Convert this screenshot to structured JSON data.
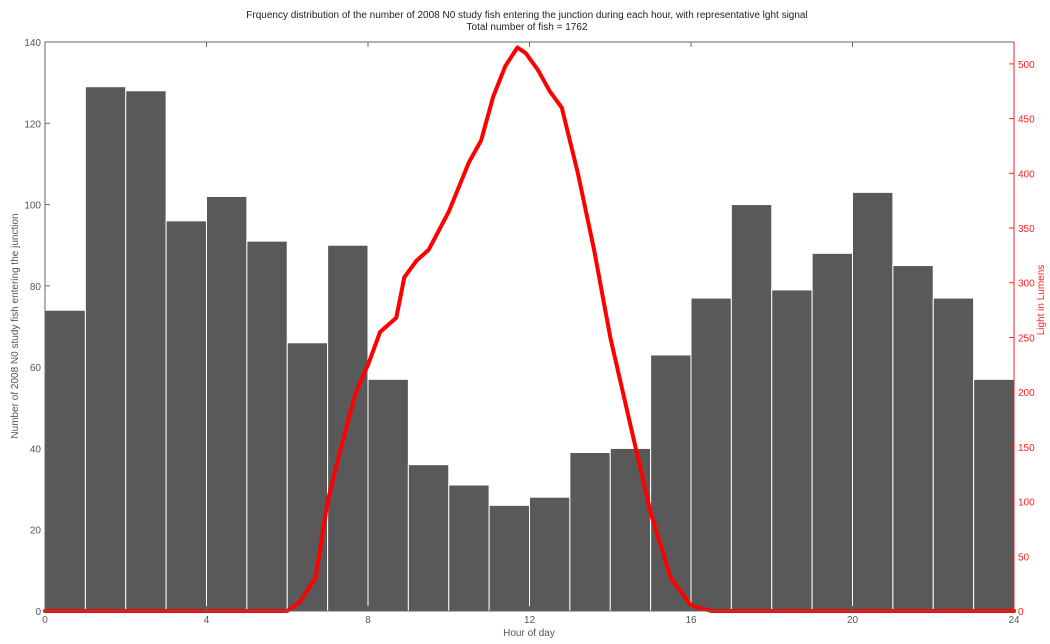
{
  "chart_data": {
    "type": "bar",
    "title": "Frquency distribution of the number of 2008 N0 study fish entering the junction during each hour, with representative lght signal",
    "subtitle": "Total number of fish = 1762",
    "xlabel": "Hour of day",
    "ylabel": "Number of 2008 N0 study fish entering the junction",
    "y2label": "Light in Lumens",
    "xlim": [
      0,
      24
    ],
    "ylim": [
      0,
      140
    ],
    "y2lim": [
      0,
      520
    ],
    "xticks": [
      0,
      4,
      8,
      12,
      16,
      20,
      24
    ],
    "yticks": [
      0,
      20,
      40,
      60,
      80,
      100,
      120,
      140
    ],
    "y2ticks": [
      0,
      50,
      100,
      150,
      200,
      250,
      300,
      350,
      400,
      450,
      500
    ],
    "grid": false,
    "colors": {
      "bars": "#595959",
      "bar_edge": "#ffffff",
      "light": "#ff0000",
      "right_axis": "#ff2020"
    },
    "bars": {
      "x": [
        0,
        1,
        2,
        3,
        4,
        5,
        6,
        7,
        8,
        9,
        10,
        11,
        12,
        13,
        14,
        15,
        16,
        17,
        18,
        19,
        20,
        21,
        22,
        23
      ],
      "values": [
        74,
        129,
        128,
        96,
        102,
        91,
        66,
        90,
        57,
        36,
        31,
        26,
        28,
        39,
        40,
        63,
        77,
        100,
        79,
        88,
        103,
        85,
        77,
        57
      ]
    },
    "light_series": {
      "x": [
        0,
        6,
        6.3,
        6.7,
        7,
        7.3,
        7.7,
        8,
        8.3,
        8.7,
        8.9,
        9.2,
        9.5,
        10,
        10.5,
        10.8,
        11.1,
        11.4,
        11.7,
        11.9,
        12.2,
        12.5,
        12.8,
        13.2,
        13.6,
        14,
        14.5,
        15,
        15.5,
        16,
        16.5,
        17,
        24
      ],
      "values": [
        0,
        0,
        8,
        30,
        100,
        145,
        200,
        225,
        255,
        268,
        305,
        320,
        330,
        365,
        410,
        430,
        470,
        498,
        515,
        510,
        495,
        475,
        460,
        400,
        330,
        250,
        170,
        90,
        30,
        5,
        0,
        0,
        0
      ]
    }
  }
}
